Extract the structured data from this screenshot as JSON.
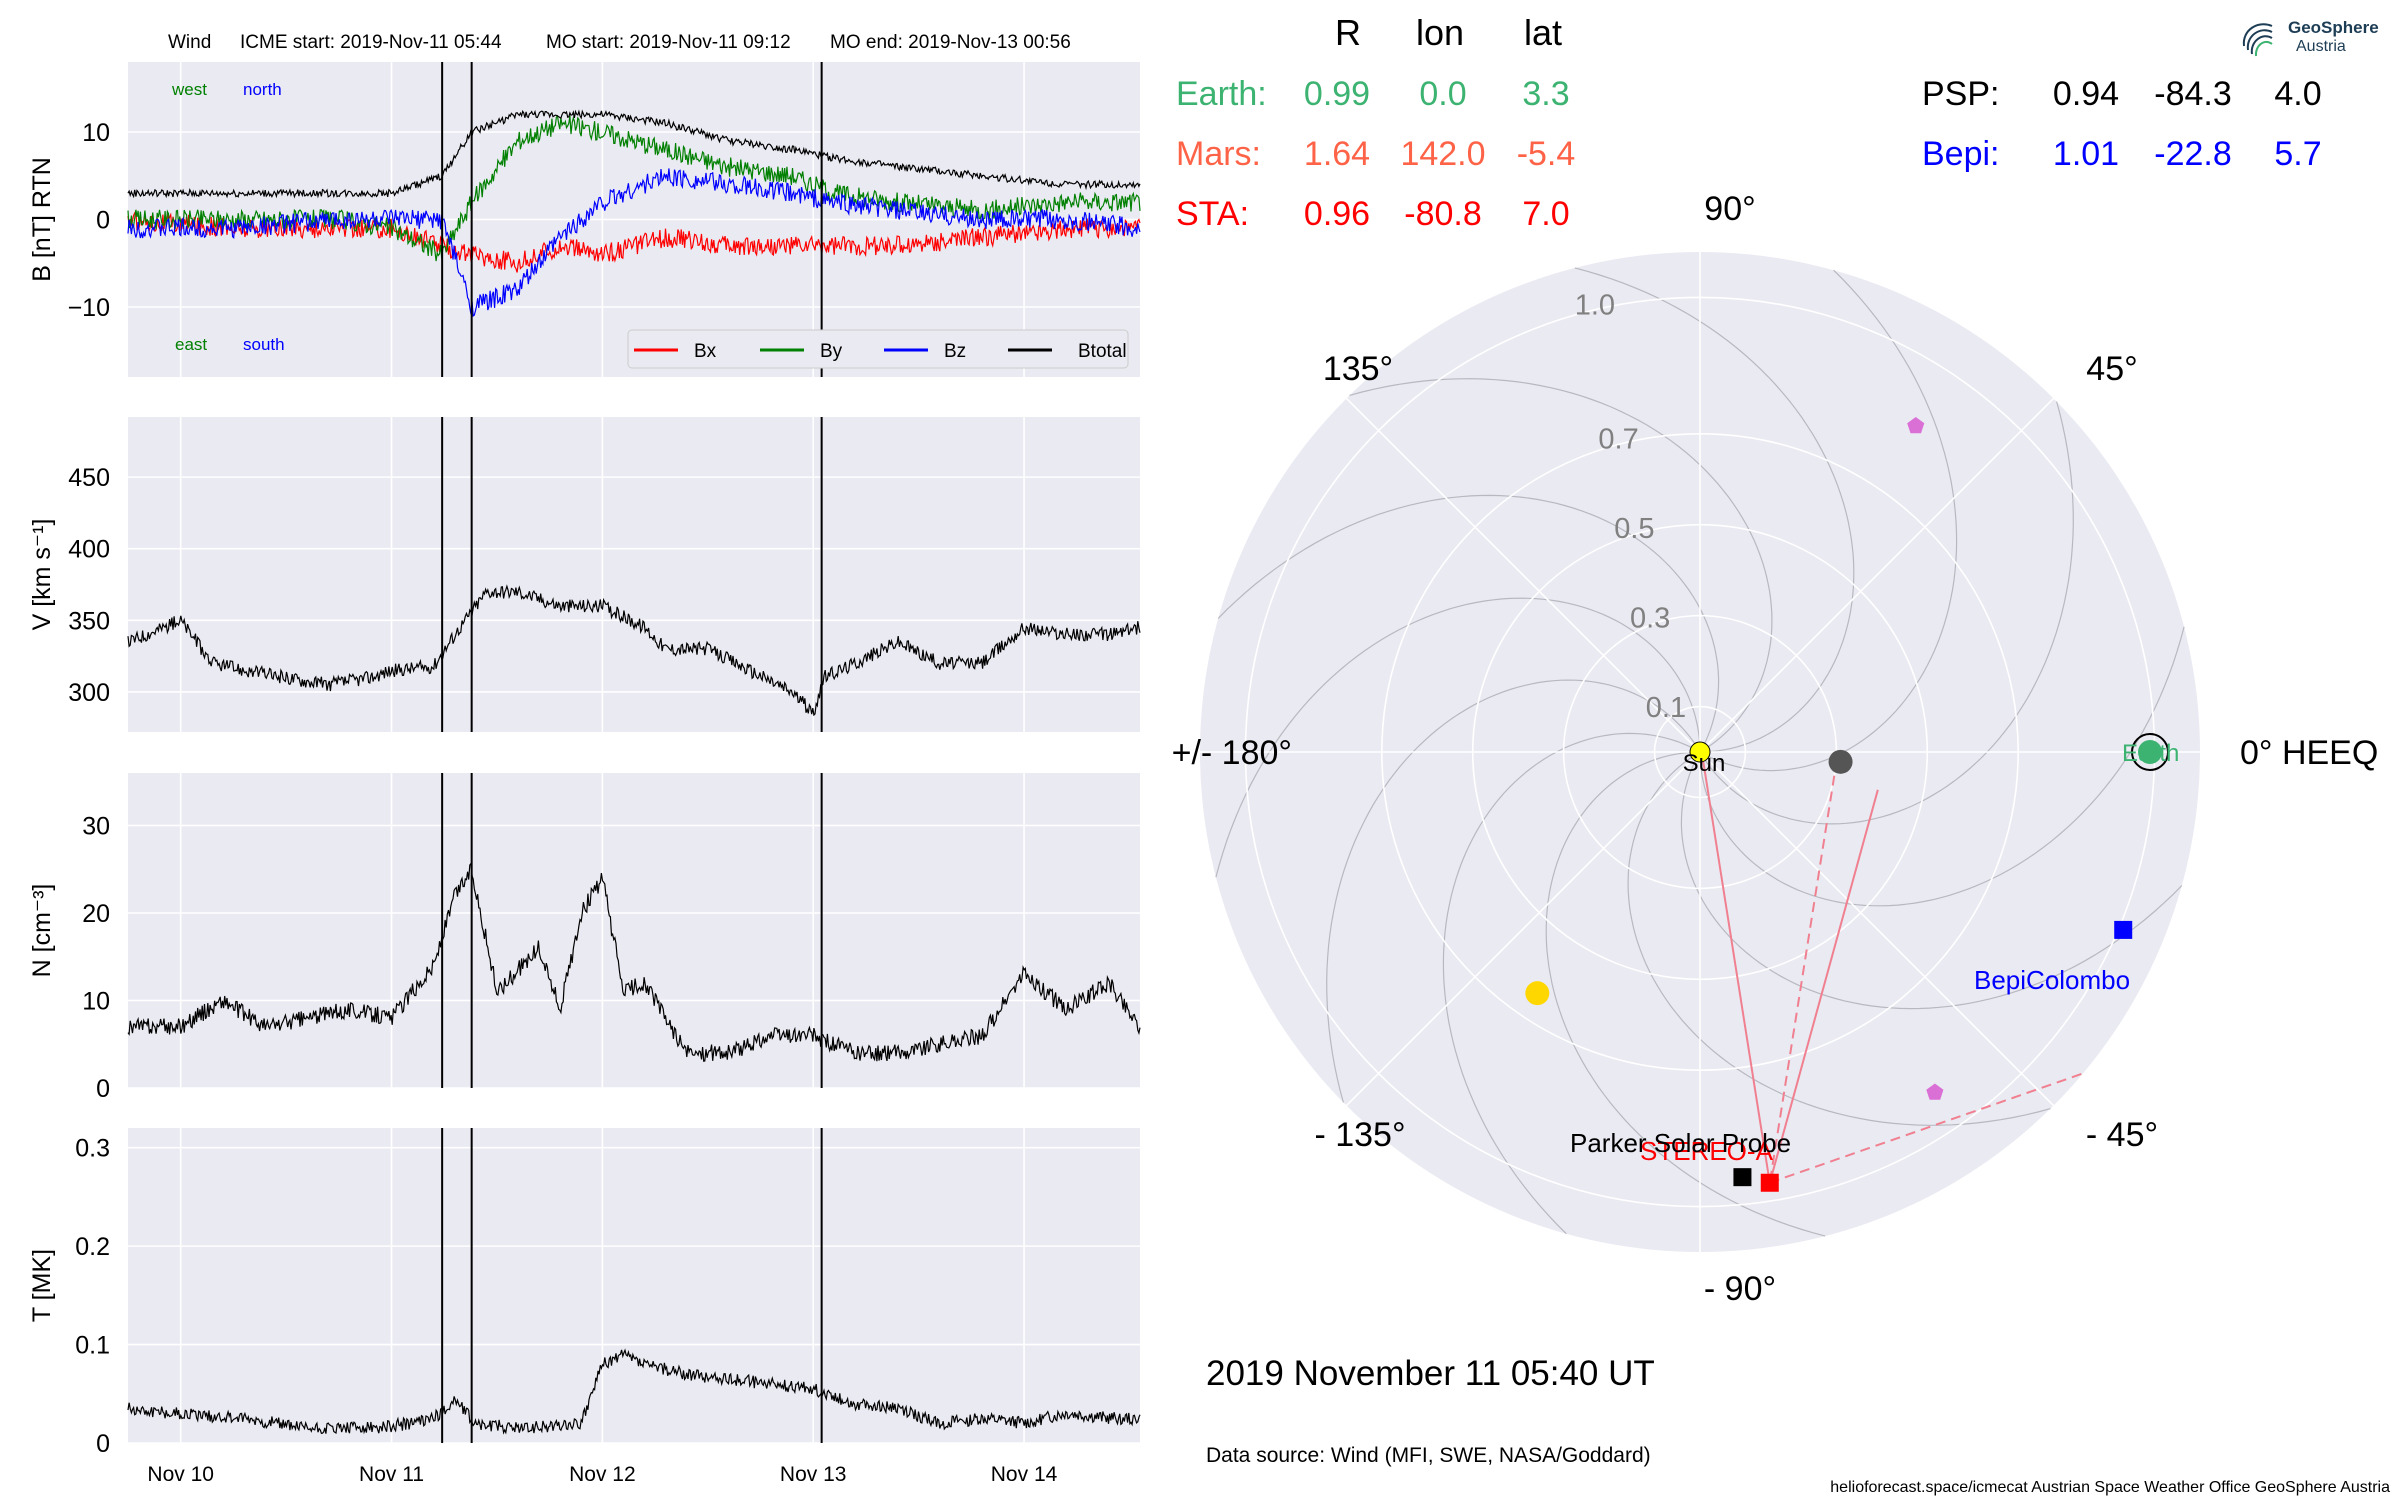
{
  "header": {
    "spacecraft": "Wind",
    "icme_start": "ICME start: 2019-Nov-11 05:44",
    "mo_start": "MO start: 2019-Nov-11 09:12",
    "mo_end": "MO end: 2019-Nov-13 00:56"
  },
  "logo": {
    "line1": "GeoSphere",
    "line2": "Austria",
    "icon": "geosphere-swirl-icon"
  },
  "colors": {
    "bx": "#ff0000",
    "by": "#008000",
    "bz": "#0000ff",
    "bt": "#000000",
    "earth": "#3cb371",
    "mars": "#ff6347",
    "sta": "#ff0000",
    "psp": "#000000",
    "bepi": "#0000ff",
    "panel_bg": "#eaeaf2",
    "grid": "#ffffff",
    "pink": "#f08090"
  },
  "positions_table": {
    "headers": [
      "R",
      "lon",
      "lat"
    ],
    "rows": [
      {
        "name": "Earth:",
        "r": "0.99",
        "lon": "0.0",
        "lat": "3.3",
        "color": "#3cb371"
      },
      {
        "name": "Mars:",
        "r": "1.64",
        "lon": "142.0",
        "lat": "-5.4",
        "color": "#ff6347"
      },
      {
        "name": "STA:",
        "r": "0.96",
        "lon": "-80.8",
        "lat": "7.0",
        "color": "#ff0000"
      }
    ],
    "right_rows": [
      {
        "name": "PSP:",
        "r": "0.94",
        "lon": "-84.3",
        "lat": "4.0",
        "color": "#000000"
      },
      {
        "name": "Bepi:",
        "r": "1.01",
        "lon": "-22.8",
        "lat": "5.7",
        "color": "#0000ff"
      }
    ]
  },
  "footer": {
    "date": "2019 November 11  05:40 UT",
    "source": "Data source: Wind (MFI, SWE, NASA/Goddard)",
    "credits": "helioforecast.space/icmecat   Austrian Space Weather Office   GeoSphere Austria"
  },
  "chart_data": [
    {
      "type": "line",
      "panel": "magnetic_field",
      "ylabel": "B [nT] RTN",
      "ylim": [
        -18,
        18
      ],
      "yticks": [
        10,
        0,
        -10
      ],
      "ytick_labels": [
        "10",
        "0",
        "−10"
      ],
      "xlim": [
        -0.25,
        4.55
      ],
      "annotations": [
        "west",
        "north",
        "east",
        "south"
      ],
      "legend": {
        "placement": "lower-right",
        "entries": [
          "Bx",
          "By",
          "Bz",
          "Btotal"
        ]
      },
      "series": [
        {
          "name": "Bx",
          "x": [
            -0.25,
            0.25,
            0.75,
            1.0,
            1.24,
            1.38,
            1.6,
            1.8,
            2.0,
            2.3,
            2.6,
            2.9,
            3.1,
            3.4,
            3.8,
            4.2,
            4.55
          ],
          "y": [
            0,
            -1,
            -1,
            -1,
            -3,
            -4,
            -5,
            -3,
            -4,
            -2,
            -3,
            -3,
            -3,
            -3,
            -2,
            -1,
            -1
          ]
        },
        {
          "name": "By",
          "x": [
            -0.25,
            0.25,
            0.75,
            1.0,
            1.24,
            1.38,
            1.6,
            1.8,
            2.0,
            2.3,
            2.6,
            2.9,
            3.1,
            3.4,
            3.8,
            4.2,
            4.55
          ],
          "y": [
            0,
            0,
            0,
            -1,
            -4,
            2,
            9,
            11,
            10,
            8,
            6,
            5,
            3,
            2,
            1,
            2,
            2
          ]
        },
        {
          "name": "Bz",
          "x": [
            -0.25,
            0.25,
            0.75,
            1.0,
            1.24,
            1.38,
            1.6,
            1.8,
            2.0,
            2.3,
            2.6,
            2.9,
            3.1,
            3.4,
            3.8,
            4.2,
            4.55
          ],
          "y": [
            -1,
            -1,
            0,
            0,
            0,
            -10,
            -8,
            -2,
            2,
            5,
            4,
            3,
            2,
            1,
            0,
            0,
            -1
          ]
        },
        {
          "name": "Btotal",
          "x": [
            -0.25,
            0.25,
            0.75,
            1.0,
            1.24,
            1.38,
            1.6,
            1.8,
            2.0,
            2.3,
            2.6,
            2.9,
            3.1,
            3.4,
            3.8,
            4.2,
            4.55
          ],
          "y": [
            3,
            3,
            3,
            3,
            5,
            10,
            12,
            12,
            12,
            11,
            9,
            8,
            7,
            6,
            5,
            4,
            4
          ]
        }
      ],
      "event_lines": [
        1.24,
        1.38,
        3.04
      ]
    },
    {
      "type": "line",
      "panel": "velocity",
      "ylabel": "V [km s⁻¹]",
      "ylim": [
        272,
        492
      ],
      "yticks": [
        450,
        400,
        350,
        300
      ],
      "xlim": [
        -0.25,
        4.55
      ],
      "series": [
        {
          "name": "V",
          "x": [
            -0.25,
            0.0,
            0.15,
            0.3,
            0.5,
            0.7,
            0.9,
            1.0,
            1.2,
            1.3,
            1.45,
            1.6,
            1.8,
            2.0,
            2.2,
            2.3,
            2.5,
            2.7,
            2.9,
            3.0,
            3.05,
            3.2,
            3.4,
            3.6,
            3.8,
            4.0,
            4.2,
            4.4,
            4.55
          ],
          "y": [
            335,
            350,
            320,
            315,
            310,
            305,
            310,
            315,
            318,
            340,
            370,
            370,
            360,
            360,
            345,
            330,
            330,
            315,
            300,
            285,
            310,
            320,
            335,
            320,
            320,
            345,
            340,
            340,
            345
          ]
        }
      ],
      "event_lines": [
        1.24,
        1.38,
        3.04
      ]
    },
    {
      "type": "line",
      "panel": "density",
      "ylabel": "N [cm⁻³]",
      "ylim": [
        0,
        36
      ],
      "yticks": [
        30,
        20,
        10,
        0
      ],
      "xlim": [
        -0.25,
        4.55
      ],
      "series": [
        {
          "name": "N",
          "x": [
            -0.25,
            0.0,
            0.2,
            0.4,
            0.6,
            0.8,
            1.0,
            1.2,
            1.3,
            1.38,
            1.5,
            1.7,
            1.8,
            1.9,
            2.0,
            2.1,
            2.2,
            2.4,
            2.6,
            2.8,
            3.0,
            3.2,
            3.4,
            3.6,
            3.8,
            4.0,
            4.2,
            4.4,
            4.55
          ],
          "y": [
            7,
            7,
            10,
            7,
            8,
            9,
            8,
            14,
            22,
            25,
            11,
            16,
            9,
            20,
            24,
            11,
            12,
            4,
            4,
            6,
            6,
            4,
            4,
            5,
            6,
            13,
            9,
            12,
            7
          ]
        }
      ],
      "event_lines": [
        1.24,
        1.38,
        3.04
      ]
    },
    {
      "type": "line",
      "panel": "temperature",
      "ylabel": "T [MK]",
      "ylim": [
        0,
        0.32
      ],
      "yticks": [
        0.3,
        0.2,
        0.1,
        0.0
      ],
      "xlim": [
        -0.25,
        4.55
      ],
      "xticks": [
        0,
        1,
        2,
        3,
        4
      ],
      "xtick_labels": [
        "Nov 10",
        "Nov 11",
        "Nov 12",
        "Nov 13",
        "Nov 14"
      ],
      "series": [
        {
          "name": "T",
          "x": [
            -0.25,
            0.0,
            0.3,
            0.6,
            0.9,
            1.1,
            1.24,
            1.3,
            1.4,
            1.6,
            1.9,
            2.0,
            2.1,
            2.2,
            2.4,
            2.6,
            2.8,
            3.0,
            3.2,
            3.4,
            3.6,
            3.8,
            4.0,
            4.2,
            4.4,
            4.55
          ],
          "y": [
            0.035,
            0.03,
            0.025,
            0.015,
            0.015,
            0.02,
            0.03,
            0.045,
            0.02,
            0.015,
            0.02,
            0.08,
            0.09,
            0.08,
            0.07,
            0.065,
            0.06,
            0.055,
            0.04,
            0.035,
            0.02,
            0.025,
            0.02,
            0.03,
            0.025,
            0.025
          ]
        }
      ],
      "event_lines": [
        1.24,
        1.38,
        3.04
      ]
    },
    {
      "type": "scatter",
      "panel": "polar_positions",
      "radial_ticks": [
        0.1,
        0.3,
        0.5,
        0.7,
        1.0
      ],
      "radial_labels": [
        "0.1",
        "0.3",
        "0.5",
        "0.7",
        "1.0"
      ],
      "angle_labels": [
        "0° HEEQ",
        "45°",
        "90°",
        "135°",
        "+/- 180°",
        "- 135°",
        "- 90°",
        "- 45°"
      ],
      "angles_deg": [
        0,
        45,
        90,
        135,
        180,
        -135,
        -90,
        -45
      ],
      "rmax": 1.1,
      "points": [
        {
          "label": "Sun",
          "r": 0.0,
          "lon": 0,
          "marker": "circle",
          "color": "#ffff00"
        },
        {
          "label": "Earth",
          "r": 0.99,
          "lon": 0.0,
          "marker": "circle",
          "color": "#3cb371"
        },
        {
          "label": "STEREO-A",
          "r": 0.96,
          "lon": -80.8,
          "marker": "square",
          "color": "#ff0000"
        },
        {
          "label": "Parker Solar Probe",
          "r": 0.94,
          "lon": -84.3,
          "marker": "square",
          "color": "#000000"
        },
        {
          "label": "BepiColombo",
          "r": 1.01,
          "lon": -22.8,
          "marker": "square",
          "color": "#0000ff"
        },
        {
          "label": "",
          "r": 0.31,
          "lon": -4,
          "marker": "circle",
          "color": "#555555"
        },
        {
          "label": "",
          "r": 0.64,
          "lon": -124,
          "marker": "circle",
          "color": "#ffd700"
        },
        {
          "label": "",
          "r": 0.86,
          "lon": 56.5,
          "marker": "pentagon",
          "color": "#da70d6"
        },
        {
          "label": "",
          "r": 0.91,
          "lon": -55.4,
          "marker": "pentagon",
          "color": "#da70d6"
        }
      ],
      "tracks": [
        {
          "from": {
            "r": 0.02,
            "lon": -70
          },
          "to": {
            "r": 0.96,
            "lon": -80.8
          },
          "style": "solid"
        },
        {
          "from": {
            "r": 0.4,
            "lon": -12
          },
          "to": {
            "r": 0.96,
            "lon": -80.8
          },
          "style": "solid"
        },
        {
          "from": {
            "r": 0.3,
            "lon": -10
          },
          "to": {
            "r": 0.96,
            "lon": -80.8
          },
          "style": "dashed"
        },
        {
          "from": {
            "r": 0.96,
            "lon": -80.8
          },
          "to": {
            "r": 1.1,
            "lon": -40
          },
          "style": "dashed"
        }
      ]
    }
  ]
}
